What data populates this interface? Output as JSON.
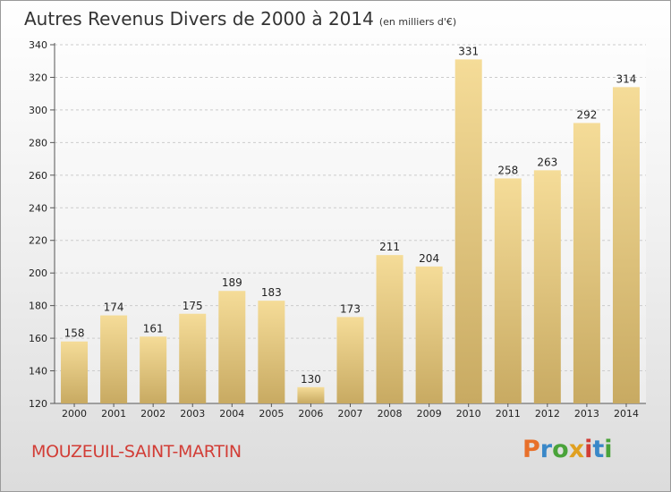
{
  "header": {
    "title": "Autres Revenus Divers de 2000 à 2014",
    "subtitle": "(en milliers d'€)"
  },
  "footer": {
    "place": "MOUZEUIL-SAINT-MARTIN",
    "logo_text": "Proxiti",
    "logo_colors": [
      "#e8702a",
      "#3a88c8",
      "#4aa33a",
      "#e0a020",
      "#d23d36",
      "#3a88c8",
      "#4aa33a"
    ]
  },
  "colors": {
    "bar_light": "#f5dc98",
    "bar_dark": "#c8aa62",
    "grid": "#cccccc",
    "axis": "#555555"
  },
  "chart_data": {
    "type": "bar",
    "title": "Autres Revenus Divers de 2000 à 2014",
    "subtitle": "(en milliers d'€)",
    "categories": [
      "2000",
      "2001",
      "2002",
      "2003",
      "2004",
      "2005",
      "2006",
      "2007",
      "2008",
      "2009",
      "2010",
      "2011",
      "2012",
      "2013",
      "2014"
    ],
    "values": [
      158,
      174,
      161,
      175,
      189,
      183,
      130,
      173,
      211,
      204,
      331,
      258,
      263,
      292,
      314
    ],
    "ylim": [
      120,
      340
    ],
    "yticks": [
      120,
      140,
      160,
      180,
      200,
      220,
      240,
      260,
      280,
      300,
      320,
      340
    ],
    "grid": true,
    "data_labels": true
  }
}
